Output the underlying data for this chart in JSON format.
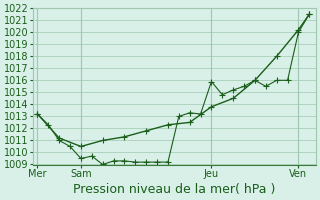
{
  "bg_color": "#d8f0e8",
  "grid_color": "#a0c8b0",
  "line_color": "#1a5e1a",
  "marker_color": "#1a5e1a",
  "title": "Pression niveau de la mer( hPa )",
  "ylabel": "",
  "ylim": [
    1009,
    1022
  ],
  "yticks": [
    1009,
    1010,
    1011,
    1012,
    1013,
    1014,
    1015,
    1016,
    1017,
    1018,
    1019,
    1020,
    1021,
    1022
  ],
  "xtick_labels": [
    "Mer",
    "Sam",
    "",
    "",
    "Jeu",
    "",
    "Ven"
  ],
  "xtick_positions": [
    0,
    1,
    2,
    3,
    4,
    5,
    6
  ],
  "vlines": [
    0,
    1,
    4,
    6
  ],
  "series1_x": [
    0,
    0.25,
    0.5,
    0.75,
    1.0,
    1.25,
    1.5,
    1.75,
    2.0,
    2.25,
    2.5,
    2.75,
    3.0,
    3.25,
    3.5,
    3.75,
    4.0,
    4.25,
    4.5,
    4.75,
    5.0,
    5.25,
    5.5,
    5.75,
    6.0,
    6.25
  ],
  "series1_y": [
    1013.2,
    1012.3,
    1011.0,
    1010.5,
    1009.5,
    1009.7,
    1009.0,
    1009.3,
    1009.3,
    1009.2,
    1009.2,
    1009.2,
    1009.2,
    1013.0,
    1013.3,
    1013.2,
    1015.9,
    1014.8,
    1015.2,
    1015.5,
    1016.0,
    1015.5,
    1016.0,
    1016.0,
    1020.0,
    1021.5
  ],
  "series2_x": [
    0,
    0.5,
    1.0,
    1.5,
    2.0,
    2.5,
    3.0,
    3.5,
    4.0,
    4.5,
    5.0,
    5.5,
    6.0,
    6.25
  ],
  "series2_y": [
    1013.2,
    1011.2,
    1010.5,
    1011.0,
    1011.3,
    1011.8,
    1012.3,
    1012.5,
    1013.8,
    1014.5,
    1016.0,
    1018.0,
    1020.2,
    1021.5
  ],
  "title_fontsize": 9,
  "tick_fontsize": 7
}
